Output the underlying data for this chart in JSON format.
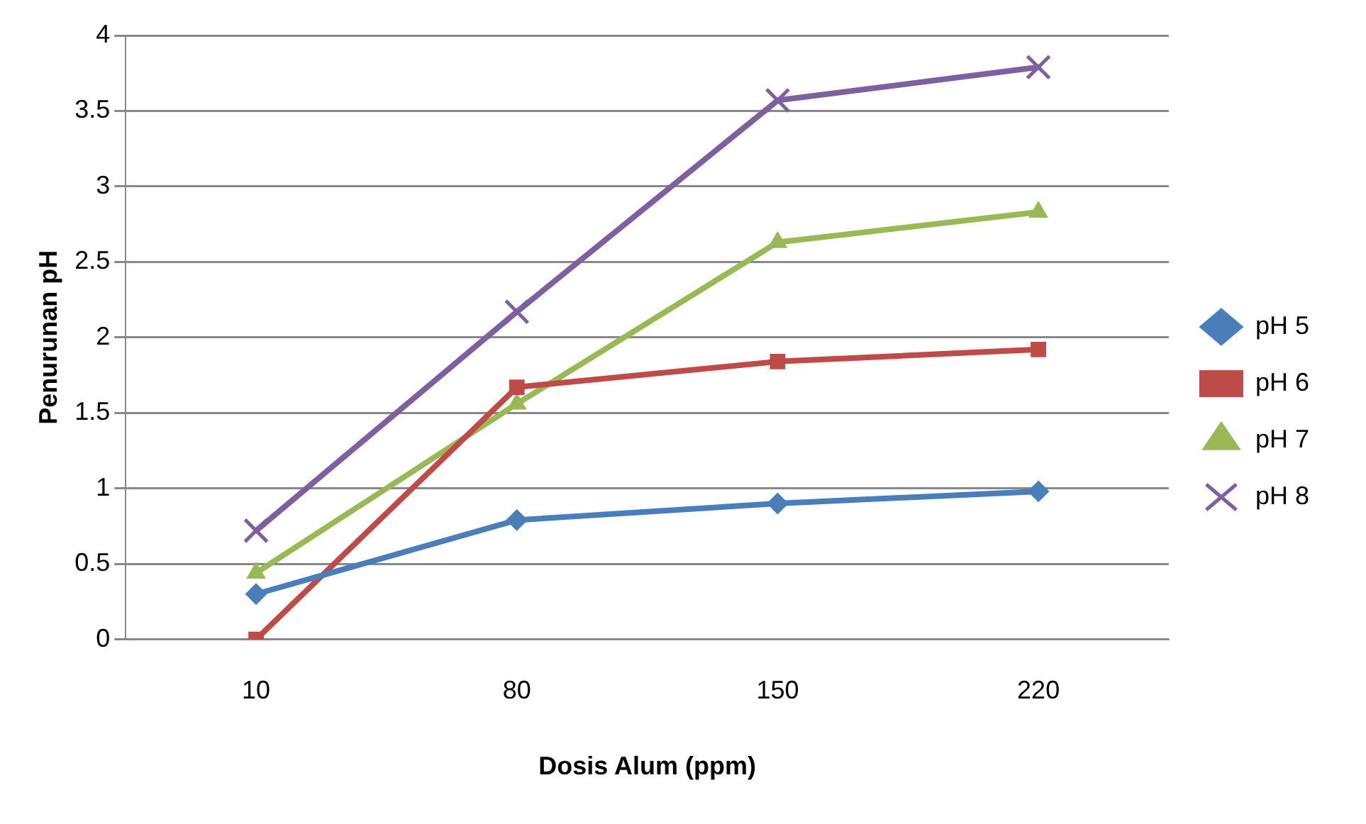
{
  "chart_data": {
    "type": "line",
    "xlabel": "Dosis Alum (ppm)",
    "ylabel": "Penurunan pH",
    "categories": [
      "10",
      "80",
      "150",
      "220"
    ],
    "series": [
      {
        "name": "pH 5",
        "color": "#4a7ebb",
        "marker": "diamond",
        "values": [
          0.3,
          0.79,
          0.9,
          0.98
        ]
      },
      {
        "name": "pH 6",
        "color": "#be4b48",
        "marker": "square",
        "values": [
          0,
          1.67,
          1.84,
          1.92
        ]
      },
      {
        "name": "pH 7",
        "color": "#98b954",
        "marker": "triangle",
        "values": [
          0.44,
          1.56,
          2.63,
          2.83
        ]
      },
      {
        "name": "pH 8",
        "color": "#7d60a0",
        "marker": "cross",
        "values": [
          0.72,
          2.17,
          3.57,
          3.79
        ]
      }
    ],
    "ylim": [
      0,
      4
    ],
    "yticks": [
      0,
      0.5,
      1,
      1.5,
      2,
      2.5,
      3,
      3.5,
      4
    ],
    "grid": "y",
    "legend": "right"
  }
}
